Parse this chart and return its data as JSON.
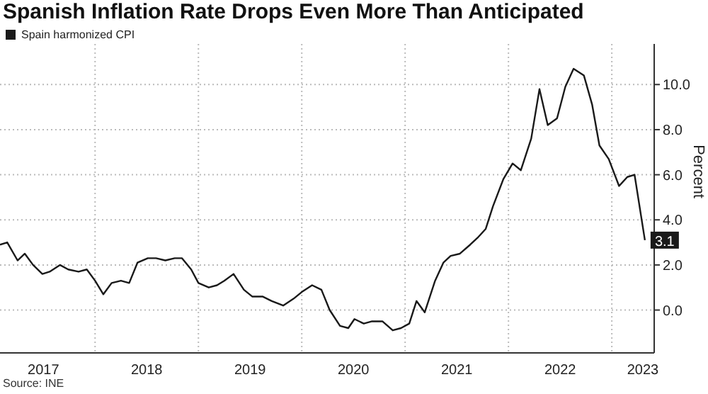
{
  "chart_data": {
    "type": "line",
    "title": "Spanish Inflation Rate Drops Even More Than Anticipated",
    "ylabel": "Percent",
    "annotations": [
      "Source: INE"
    ],
    "x": [
      2017.08,
      2017.15,
      2017.25,
      2017.32,
      2017.4,
      2017.49,
      2017.56,
      2017.66,
      2017.74,
      2017.84,
      2017.92,
      2018.0,
      2018.08,
      2018.16,
      2018.25,
      2018.33,
      2018.41,
      2018.51,
      2018.59,
      2018.68,
      2018.77,
      2018.84,
      2018.93,
      2019.0,
      2019.1,
      2019.18,
      2019.25,
      2019.34,
      2019.44,
      2019.52,
      2019.62,
      2019.71,
      2019.82,
      2019.92,
      2020.0,
      2020.1,
      2020.19,
      2020.27,
      2020.37,
      2020.45,
      2020.51,
      2020.6,
      2020.68,
      2020.78,
      2020.88,
      2020.96,
      2021.04,
      2021.11,
      2021.19,
      2021.29,
      2021.37,
      2021.44,
      2021.53,
      2021.63,
      2021.7,
      2021.78,
      2021.85,
      2021.95,
      2022.04,
      2022.12,
      2022.22,
      2022.3,
      2022.38,
      2022.47,
      2022.55,
      2022.63,
      2022.73,
      2022.81,
      2022.88,
      2022.97,
      2023.07,
      2023.15,
      2023.22,
      2023.32
    ],
    "series": [
      {
        "name": "Spain harmonized CPI",
        "color": "#1a1a1a",
        "values": [
          2.9,
          3.0,
          2.2,
          2.5,
          2.0,
          1.6,
          1.7,
          2.0,
          1.8,
          1.7,
          1.8,
          1.3,
          0.7,
          1.2,
          1.3,
          1.2,
          2.1,
          2.3,
          2.3,
          2.2,
          2.3,
          2.3,
          1.8,
          1.2,
          1.0,
          1.1,
          1.3,
          1.6,
          0.9,
          0.6,
          0.6,
          0.4,
          0.2,
          0.5,
          0.8,
          1.1,
          0.9,
          0.0,
          -0.7,
          -0.8,
          -0.4,
          -0.6,
          -0.5,
          -0.5,
          -0.9,
          -0.8,
          -0.6,
          0.4,
          -0.1,
          1.3,
          2.1,
          2.4,
          2.5,
          2.9,
          3.2,
          3.6,
          4.6,
          5.8,
          6.5,
          6.2,
          7.6,
          9.8,
          8.2,
          8.5,
          9.9,
          10.7,
          10.4,
          9.1,
          7.3,
          6.7,
          5.5,
          5.9,
          6.0,
          3.1
        ],
        "value_labels": [
          null,
          null,
          null,
          null,
          null,
          null,
          null,
          null,
          null,
          null,
          null,
          null,
          null,
          null,
          null,
          null,
          null,
          null,
          null,
          null,
          null,
          null,
          null,
          null,
          null,
          null,
          null,
          null,
          null,
          null,
          null,
          null,
          null,
          null,
          null,
          null,
          null,
          null,
          null,
          null,
          null,
          null,
          null,
          null,
          null,
          null,
          null,
          null,
          null,
          null,
          null,
          null,
          null,
          null,
          null,
          null,
          null,
          null,
          null,
          null,
          null,
          null,
          null,
          null,
          null,
          null,
          null,
          null,
          null,
          null,
          null,
          null,
          null,
          "3.1"
        ]
      }
    ],
    "xlim": [
      2017.08,
      2023.41
    ],
    "xticks": [
      {
        "value": 2017.5,
        "label": "2017"
      },
      {
        "value": 2018,
        "label": null
      },
      {
        "value": 2018.5,
        "label": "2018"
      },
      {
        "value": 2019,
        "label": null
      },
      {
        "value": 2019.5,
        "label": "2019"
      },
      {
        "value": 2020,
        "label": null
      },
      {
        "value": 2020.5,
        "label": "2020"
      },
      {
        "value": 2021,
        "label": null
      },
      {
        "value": 2021.5,
        "label": "2021"
      },
      {
        "value": 2022,
        "label": null
      },
      {
        "value": 2022.5,
        "label": "2022"
      },
      {
        "value": 2023,
        "label": null
      },
      {
        "value": 2023.3,
        "label": "2023"
      }
    ],
    "ylim": [
      -1.9,
      11.8
    ],
    "yticks": [
      {
        "value": 0,
        "label": "0.0"
      },
      {
        "value": 2,
        "label": "2.0"
      },
      {
        "value": 4,
        "label": "4.0"
      },
      {
        "value": 6,
        "label": "6.0"
      },
      {
        "value": 8,
        "label": "8.0"
      },
      {
        "value": 10,
        "label": "10.0"
      }
    ],
    "grid": true,
    "legend": "top left",
    "marker": "none",
    "line_style": "solid"
  }
}
